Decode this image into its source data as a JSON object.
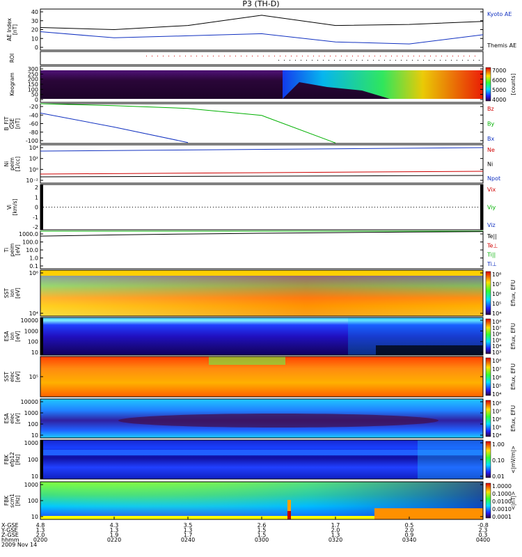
{
  "title": "P3 (TH-D)",
  "panels": [
    {
      "id": "ae",
      "ylabel": [
        "AE Index",
        "[nT]"
      ],
      "yticks": [
        "40",
        "30",
        "20",
        "10",
        "0"
      ],
      "legend": [
        {
          "text": "Kyoto AE",
          "color": "#1030c0"
        },
        {
          "text": "Themis AE",
          "color": "#000000"
        }
      ]
    },
    {
      "id": "roi",
      "ylabel": [
        "ROI"
      ],
      "yticks": [],
      "legend": []
    },
    {
      "id": "keogram",
      "ylabel": [
        "Keogram"
      ],
      "yticks": [
        "300",
        "250",
        "200",
        "150",
        "100",
        "50",
        "0"
      ],
      "legend": [],
      "colorbar": {
        "ticks": [
          "7000",
          "6000",
          "5000",
          "4000"
        ],
        "label": "[counts]"
      }
    },
    {
      "id": "bfit",
      "ylabel": [
        "B_FIT",
        "GSE",
        "[nT]"
      ],
      "yticks": [
        "-20",
        "-40",
        "-60",
        "-80",
        "-100"
      ],
      "legend": [
        {
          "text": "Bz",
          "color": "#d00000"
        },
        {
          "text": "By",
          "color": "#00b000"
        },
        {
          "text": "Bx",
          "color": "#1030c0"
        }
      ]
    },
    {
      "id": "ni",
      "ylabel": [
        "Ni",
        "peim",
        "[1/cc]"
      ],
      "yticks": [
        "10⁴",
        "10²",
        "10⁰",
        "10⁻²"
      ],
      "legend": [
        {
          "text": "Ne",
          "color": "#d00000"
        },
        {
          "text": "Ni",
          "color": "#000000"
        },
        {
          "text": "Npot",
          "color": "#1030c0"
        }
      ]
    },
    {
      "id": "vi",
      "ylabel": [
        "Vi",
        "[km/s]"
      ],
      "yticks": [
        "2",
        "1",
        "0",
        "-1",
        "-2"
      ],
      "legend": [
        {
          "text": "Vix",
          "color": "#d00000"
        },
        {
          "text": "Viy",
          "color": "#00b000"
        },
        {
          "text": "Viz",
          "color": "#1030c0"
        }
      ]
    },
    {
      "id": "ti",
      "ylabel": [
        "Ti",
        "peim",
        "[eV]"
      ],
      "yticks": [
        "1000.0",
        "100.0",
        "10.0",
        "1.0",
        "0.1"
      ],
      "legend": [
        {
          "text": "Te||",
          "color": "#000000"
        },
        {
          "text": "Te⊥",
          "color": "#d00000"
        },
        {
          "text": "Ti||",
          "color": "#00b000"
        },
        {
          "text": "Ti⊥",
          "color": "#1030c0"
        }
      ]
    },
    {
      "id": "sst_i",
      "ylabel": [
        "SST",
        "ion",
        "[eV]"
      ],
      "yticks": [
        "10⁶",
        "10⁴"
      ],
      "legend": [],
      "colorbar": {
        "ticks": [
          "10⁸",
          "10⁷",
          "10⁶",
          "10⁵",
          "10⁴"
        ],
        "label": "Eflux, EFU"
      }
    },
    {
      "id": "esa_i",
      "ylabel": [
        "ESA",
        "ion",
        "[eV]"
      ],
      "yticks": [
        "10000",
        "1000",
        "100",
        "10"
      ],
      "legend": [],
      "colorbar": {
        "ticks": [
          "10⁸",
          "10⁷",
          "10⁶",
          "10⁵",
          "10⁴",
          "10³"
        ],
        "label": "Eflux, EFU"
      }
    },
    {
      "id": "sst_e",
      "ylabel": [
        "SST",
        "elec",
        "[eV]"
      ],
      "yticks": [
        "10⁵"
      ],
      "legend": [],
      "colorbar": {
        "ticks": [
          "10⁸",
          "10⁷",
          "10⁶",
          "10⁵",
          "10⁴"
        ],
        "label": "Eflux, EFU"
      }
    },
    {
      "id": "esa_e",
      "ylabel": [
        "ESA",
        "elec",
        "[eV]"
      ],
      "yticks": [
        "10000",
        "1000",
        "100",
        "10"
      ],
      "legend": [],
      "colorbar": {
        "ticks": [
          "10⁸",
          "10⁷",
          "10⁶",
          "10⁵",
          "10⁴"
        ],
        "label": "Eflux, EFU"
      }
    },
    {
      "id": "fbk_e",
      "ylabel": [
        "FBK",
        "efp12",
        "[Hz]"
      ],
      "yticks": [
        "1000",
        "100",
        "10"
      ],
      "legend": [],
      "colorbar": {
        "ticks": [
          "1.00",
          "0.10",
          "0.01"
        ],
        "label": "<|mV/m|>"
      }
    },
    {
      "id": "fbk_b",
      "ylabel": [
        "FBK",
        "scm1",
        "[Hz]"
      ],
      "yticks": [
        "1000",
        "100",
        "10"
      ],
      "legend": [],
      "colorbar": {
        "ticks": [
          "1.0000",
          "0.1000",
          "0.0100",
          "0.0010",
          "0.0001"
        ],
        "label": "<|nT|>"
      }
    }
  ],
  "xaxis": {
    "row_labels": [
      "X-GSE",
      "Y-GSE",
      "Z-GSE",
      "hhmm",
      "2009 Nov 14"
    ],
    "x_gse": [
      "4.8",
      "4.3",
      "3.5",
      "2.6",
      "1.7",
      "0.5",
      "-0.8"
    ],
    "y_gse": [
      "1.3",
      "1.3",
      "1.3",
      "1.5",
      "2.0",
      "2.0",
      "2.3"
    ],
    "z_gse": [
      "2.0",
      "1.9",
      "1.7",
      "1.5",
      "1.3",
      "0.9",
      "0.3"
    ],
    "hhmm": [
      "0200",
      "0220",
      "0240",
      "0300",
      "0320",
      "0340",
      "0400"
    ]
  },
  "chart_data": [
    {
      "type": "line",
      "title": "P3 (TH-D)",
      "ylabel": "AE Index [nT]",
      "ylim": [
        0,
        40
      ],
      "x": [
        "0200",
        "0220",
        "0240",
        "0300",
        "0320",
        "0340",
        "0400"
      ],
      "series": [
        {
          "name": "Kyoto AE",
          "color": "#1030c0",
          "values": [
            18,
            12,
            14,
            16,
            8,
            6,
            15
          ]
        },
        {
          "name": "Themis AE",
          "color": "#000000",
          "values": [
            22,
            20,
            24,
            34,
            24,
            25,
            28
          ]
        }
      ]
    },
    {
      "type": "line",
      "ylabel": "B_FIT GSE [nT]",
      "ylim": [
        -105,
        -20
      ],
      "x": [
        "0200",
        "0220",
        "0240",
        "0300",
        "0320",
        "0340",
        "0400"
      ],
      "series": [
        {
          "name": "Bx",
          "color": "#1030c0",
          "values": [
            -40,
            -70,
            -103,
            null,
            null,
            null,
            null
          ]
        },
        {
          "name": "By",
          "color": "#00b000",
          "values": [
            -20,
            -24,
            -30,
            -45,
            -104,
            null,
            null
          ]
        }
      ]
    },
    {
      "type": "line",
      "ylabel": "Ti peim [eV]",
      "ylim": [
        0.1,
        1000
      ],
      "scale": "log",
      "x": [
        "0200",
        "0220",
        "0240",
        "0300",
        "0320",
        "0340",
        "0400"
      ],
      "series": [
        {
          "name": "Ti||",
          "color": "#00b000",
          "values": [
            1000,
            1000,
            1000,
            1000,
            1000,
            1000,
            1000
          ]
        },
        {
          "name": "Te||",
          "color": "#000000",
          "values": [
            300,
            400,
            500,
            600,
            700,
            800,
            900
          ]
        }
      ]
    }
  ],
  "colors": {
    "axis": "#000000",
    "blue": "#1030c0",
    "green": "#00c000",
    "red": "#d00000"
  }
}
